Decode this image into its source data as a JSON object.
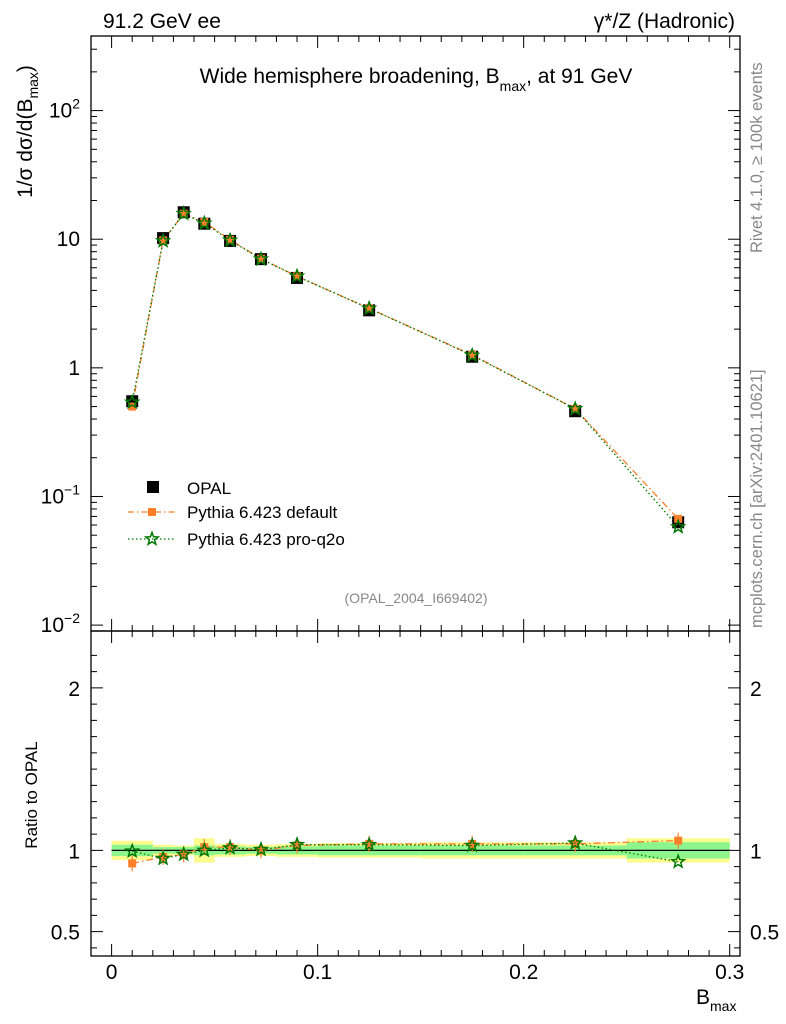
{
  "header": {
    "left": "91.2 GeV ee",
    "right": "γ*/Z (Hadronic)"
  },
  "side_labels": {
    "top": "Rivet 4.1.0, ≥ 100k events",
    "bottom": "mcplots.cern.ch [arXiv:2401.10621]"
  },
  "analysis_id": "(OPAL_2004_I669402)",
  "chart_data": [
    {
      "type": "scatter",
      "title": "Wide hemisphere broadening, B_max, at 91 GeV",
      "title_parts": {
        "pre": "Wide hemisphere broadening, B",
        "sub": "max",
        "post": ", at 91 GeV"
      },
      "xlabel": "B_max",
      "xlabel_parts": {
        "main": "B",
        "sub": "max"
      },
      "ylabel": "1/σ dσ/d(B_max)",
      "ylabel_parts": {
        "pre": "1/σ  dσ/d(B",
        "sub": "max",
        "post": ")"
      },
      "yscale": "log",
      "xlim": [
        -0.01,
        0.305
      ],
      "ylim": [
        0.009,
        380
      ],
      "xticks": [
        0,
        0.1,
        0.2,
        0.3
      ],
      "xtick_labels": [
        "0",
        "0.1",
        "0.2",
        "0.3"
      ],
      "yticks": [
        0.01,
        0.1,
        1,
        10,
        100
      ],
      "ytick_labels": [
        {
          "base": "10",
          "exp": "−2"
        },
        {
          "base": "10",
          "exp": "−1"
        },
        {
          "base": "1",
          "exp": ""
        },
        {
          "base": "10",
          "exp": ""
        },
        {
          "base": "10",
          "exp": "2"
        }
      ],
      "legend_position": "lower-left",
      "series": [
        {
          "name": "OPAL",
          "marker": "square",
          "color": "#000000",
          "x": [
            0.01,
            0.025,
            0.035,
            0.045,
            0.0575,
            0.0725,
            0.09,
            0.125,
            0.175,
            0.225,
            0.275
          ],
          "values": [
            0.55,
            10.2,
            16.2,
            13.2,
            9.7,
            7.0,
            5.0,
            2.8,
            1.22,
            0.46,
            0.063
          ]
        },
        {
          "name": "Pythia 6.423 default",
          "marker": "filled-square",
          "line": "dash-dot",
          "color": "#ff7f2a",
          "x": [
            0.01,
            0.025,
            0.035,
            0.045,
            0.0575,
            0.0725,
            0.09,
            0.125,
            0.175,
            0.225,
            0.275
          ],
          "values": [
            0.5,
            9.8,
            15.8,
            13.6,
            9.9,
            7.05,
            5.15,
            2.9,
            1.26,
            0.48,
            0.067
          ]
        },
        {
          "name": "Pythia 6.423 pro-q2o",
          "marker": "star",
          "line": "dotted",
          "color": "#007700",
          "x": [
            0.01,
            0.025,
            0.035,
            0.045,
            0.0575,
            0.0725,
            0.09,
            0.125,
            0.175,
            0.225,
            0.275
          ],
          "values": [
            0.54,
            9.7,
            15.8,
            13.3,
            9.8,
            7.0,
            5.15,
            2.9,
            1.25,
            0.48,
            0.058
          ]
        }
      ]
    },
    {
      "type": "scatter",
      "ylabel": "Ratio to OPAL",
      "xlabel": "B_max",
      "xlim": [
        -0.01,
        0.305
      ],
      "ylim": [
        0.35,
        2.35
      ],
      "yticks": [
        0.5,
        1,
        2
      ],
      "ytick_labels": [
        "0.5",
        "1",
        "2"
      ],
      "bands": {
        "bin_edges": [
          0,
          0.02,
          0.03,
          0.04,
          0.05,
          0.065,
          0.08,
          0.1,
          0.15,
          0.2,
          0.25,
          0.3
        ],
        "inner_halfwidth": [
          0.035,
          0.02,
          0.02,
          0.03,
          0.025,
          0.02,
          0.025,
          0.03,
          0.03,
          0.03,
          0.05
        ],
        "outer_halfwidth": [
          0.06,
          0.035,
          0.03,
          0.075,
          0.04,
          0.035,
          0.04,
          0.045,
          0.05,
          0.05,
          0.075
        ],
        "inner_color": "#8cf58c",
        "outer_color": "#fbfb90"
      },
      "series": [
        {
          "name": "Pythia 6.423 default",
          "color": "#ff7f2a",
          "x": [
            0.01,
            0.025,
            0.035,
            0.045,
            0.0575,
            0.0725,
            0.09,
            0.125,
            0.175,
            0.225,
            0.275
          ],
          "values": [
            0.92,
            0.96,
            0.975,
            1.02,
            1.02,
            1.0,
            1.03,
            1.04,
            1.04,
            1.04,
            1.06
          ]
        },
        {
          "name": "Pythia 6.423 pro-q2o",
          "color": "#007700",
          "x": [
            0.01,
            0.025,
            0.035,
            0.045,
            0.0575,
            0.0725,
            0.09,
            0.125,
            0.175,
            0.225,
            0.275
          ],
          "values": [
            0.995,
            0.95,
            0.975,
            1.0,
            1.015,
            1.005,
            1.035,
            1.035,
            1.03,
            1.045,
            0.93
          ]
        }
      ]
    }
  ]
}
